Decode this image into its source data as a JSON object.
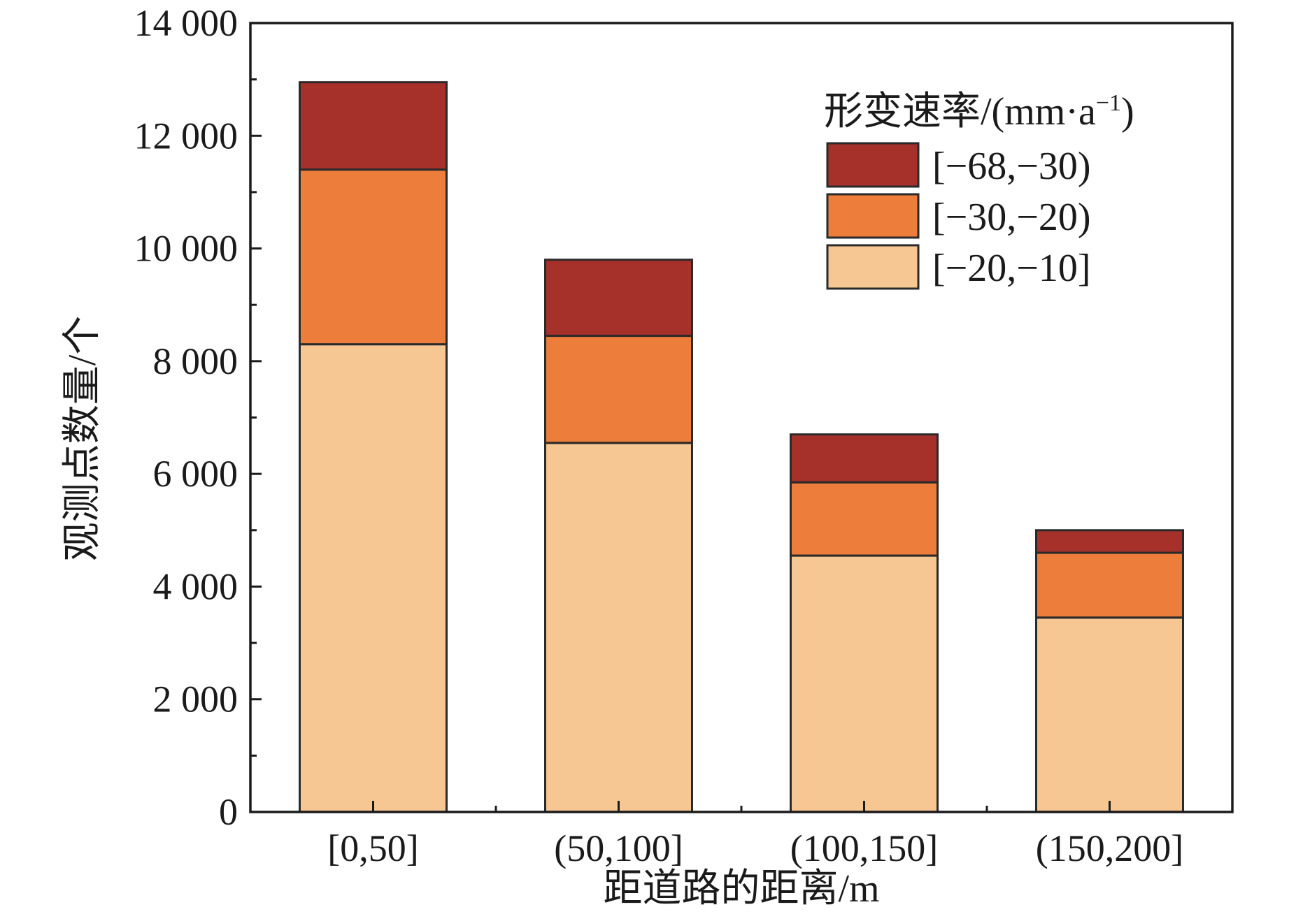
{
  "colors": {
    "axis": "#1a1a1a",
    "bar_stroke": "#2a2a2a",
    "series": [
      "#f6c793",
      "#ec7d3a",
      "#a6302a"
    ]
  },
  "chart_data": {
    "type": "bar",
    "stacked": true,
    "title": "",
    "xlabel": "距道路的距离/m",
    "ylabel": "观测点数量/个",
    "categories": [
      "[0,50]",
      "(50,100]",
      "(100,150]",
      "(150,200]"
    ],
    "ylim": [
      0,
      14000
    ],
    "yticks": [
      0,
      2000,
      4000,
      6000,
      8000,
      10000,
      12000,
      14000
    ],
    "ytick_labels": [
      "0",
      "2 000",
      "4 000",
      "6 000",
      "8 000",
      "10 000",
      "12 000",
      "14 000"
    ],
    "grid": false,
    "legend": {
      "position": "top-right",
      "title": "形变速率/(mm·a",
      "title_sup": "−1",
      "title_end": ")"
    },
    "series": [
      {
        "name": "[−20,−10]",
        "values": [
          8300,
          6550,
          4550,
          3450
        ]
      },
      {
        "name": "[−30,−20)",
        "values": [
          3100,
          1900,
          1300,
          1150
        ]
      },
      {
        "name": "[−68,−30)",
        "values": [
          1550,
          1350,
          850,
          400
        ]
      }
    ]
  }
}
